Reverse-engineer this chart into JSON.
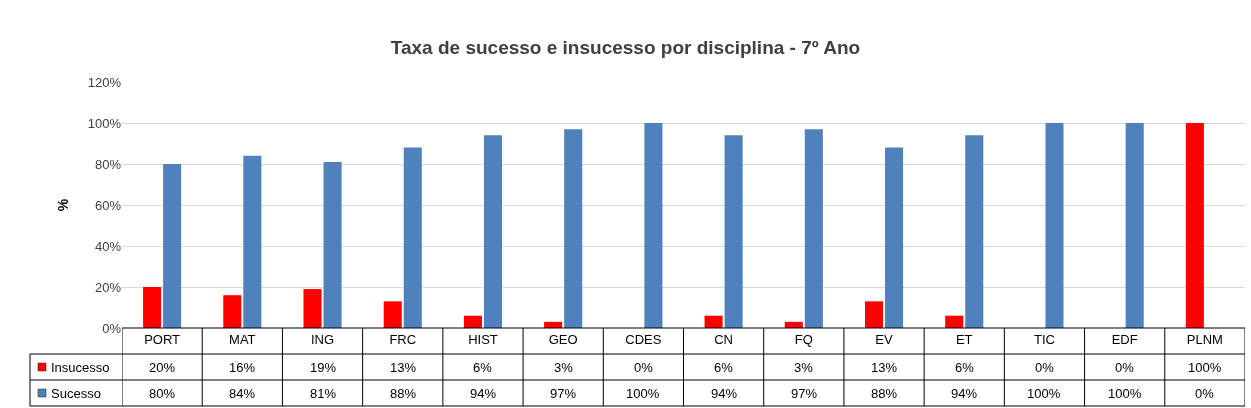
{
  "chart_data": {
    "type": "bar",
    "title": "Taxa de sucesso e insucesso por disciplina - 7º Ano",
    "ylabel": "%",
    "categories": [
      "PORT",
      "MAT",
      "ING",
      "FRC",
      "HIST",
      "GEO",
      "CDES",
      "CN",
      "FQ",
      "EV",
      "ET",
      "TIC",
      "EDF",
      "PLNM"
    ],
    "series": [
      {
        "name": "Insucesso",
        "color": "#ff0000",
        "values": [
          20,
          16,
          19,
          13,
          6,
          3,
          0,
          6,
          3,
          13,
          6,
          0,
          0,
          100
        ],
        "value_labels": [
          "20%",
          "16%",
          "19%",
          "13%",
          "6%",
          "3%",
          "0%",
          "6%",
          "3%",
          "13%",
          "6%",
          "0%",
          "0%",
          "100%"
        ]
      },
      {
        "name": "Sucesso",
        "color": "#4f81bd",
        "values": [
          80,
          84,
          81,
          88,
          94,
          97,
          100,
          94,
          97,
          88,
          94,
          100,
          100,
          0
        ],
        "value_labels": [
          "80%",
          "84%",
          "81%",
          "88%",
          "94%",
          "97%",
          "100%",
          "94%",
          "97%",
          "88%",
          "94%",
          "100%",
          "100%",
          "0%"
        ]
      }
    ],
    "ylim": [
      0,
      120
    ],
    "yticks": [
      {
        "value": 0,
        "label": "0%"
      },
      {
        "value": 20,
        "label": "20%"
      },
      {
        "value": 40,
        "label": "40%"
      },
      {
        "value": 60,
        "label": "60%"
      },
      {
        "value": 80,
        "label": "80%"
      },
      {
        "value": 100,
        "label": "100%"
      },
      {
        "value": 120,
        "label": "120%"
      }
    ],
    "grid": "y",
    "legend": "bottom left"
  }
}
